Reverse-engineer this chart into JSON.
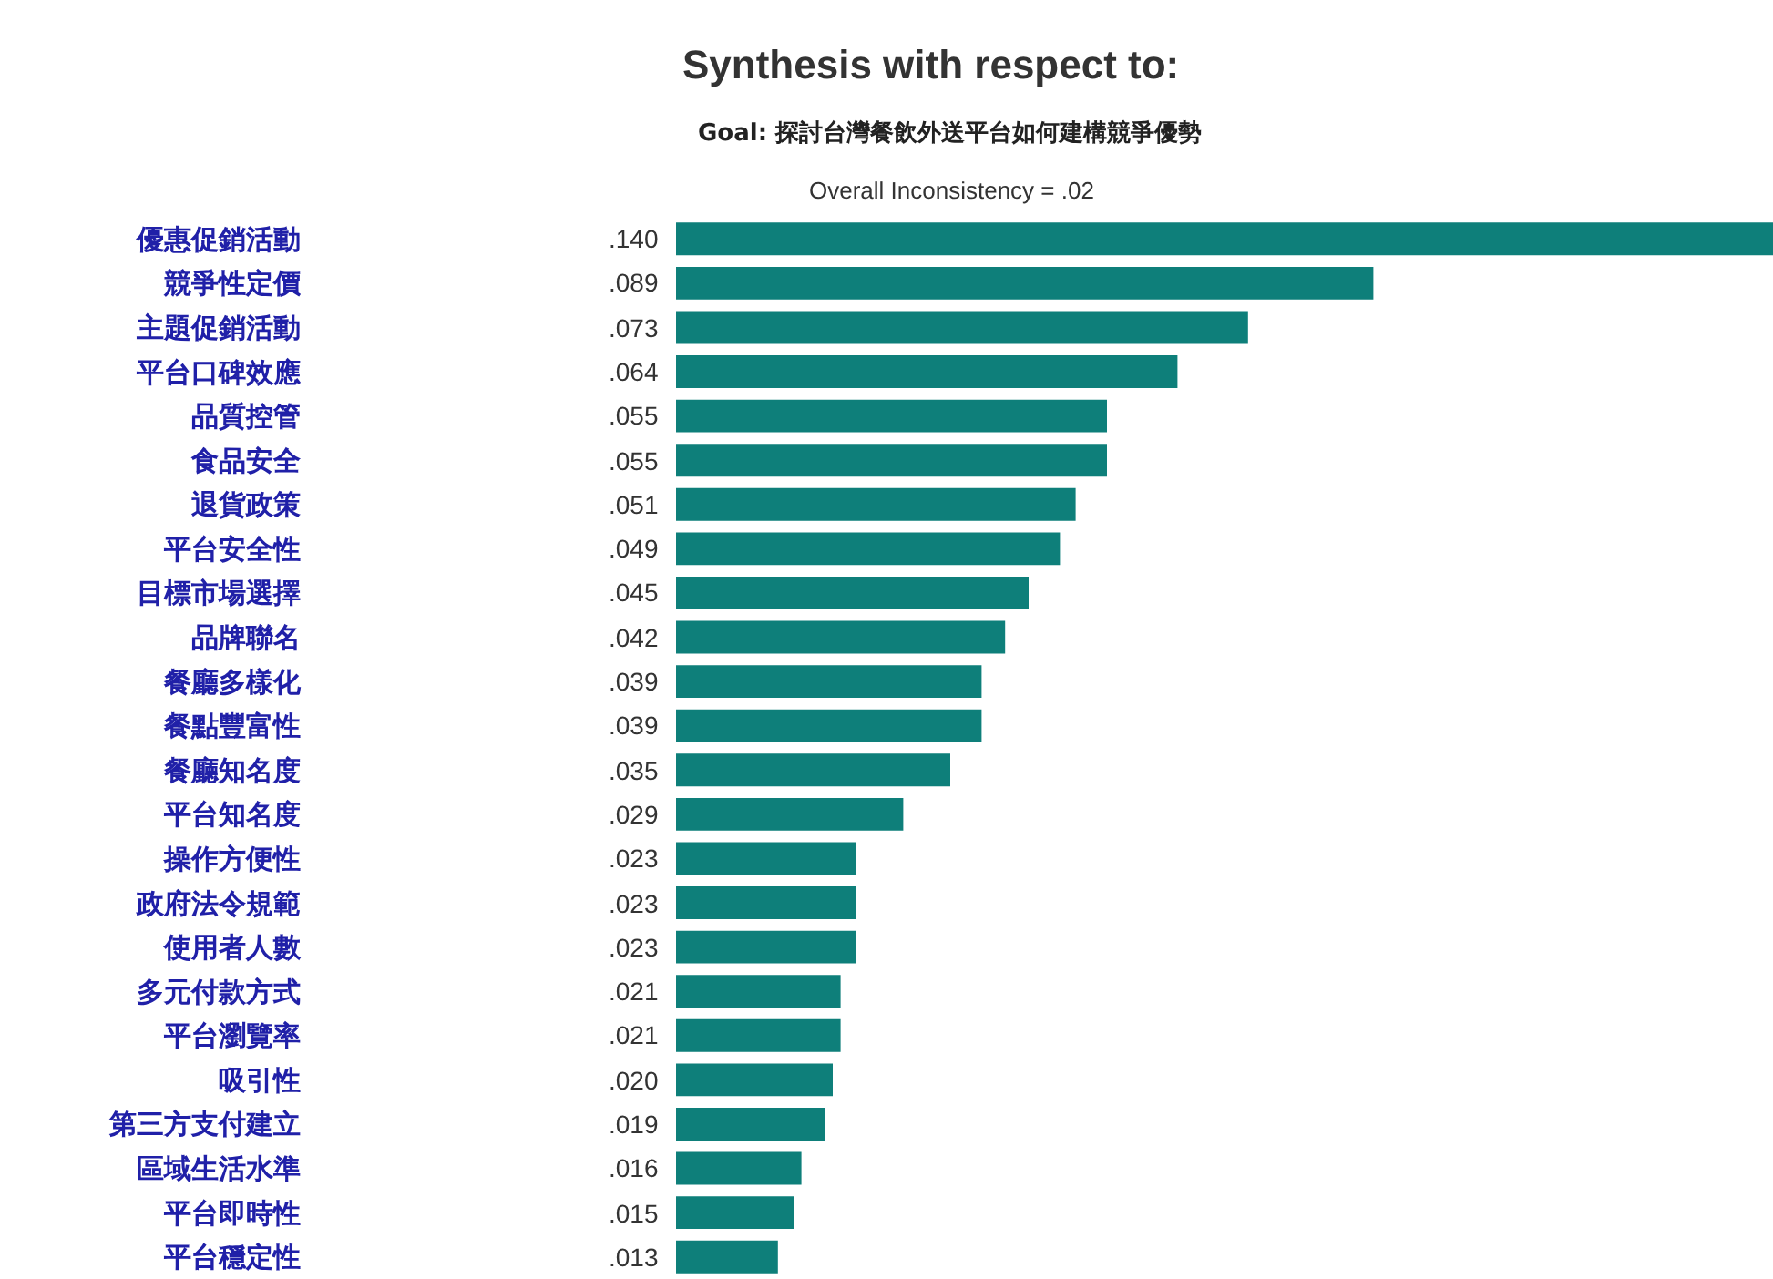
{
  "chart_data": {
    "type": "bar",
    "orientation": "horizontal",
    "title": "Synthesis with respect to:",
    "subtitle": "Goal: 探討台灣餐飲外送平台如何建構競爭優勢",
    "annotations": [
      "Overall Inconsistency = .02"
    ],
    "categories": [
      "優惠促銷活動",
      "競爭性定價",
      "主題促銷活動",
      "平台口碑效應",
      "品質控管",
      "食品安全",
      "退貨政策",
      "平台安全性",
      "目標市場選擇",
      "品牌聯名",
      "餐廳多樣化",
      "餐點豐富性",
      "餐廳知名度",
      "平台知名度",
      "操作方便性",
      "政府法令規範",
      "使用者人數",
      "多元付款方式",
      "平台瀏覽率",
      "吸引性",
      "第三方支付建立",
      "區域生活水準",
      "平台即時性",
      "平台穩定性"
    ],
    "values": [
      0.14,
      0.089,
      0.073,
      0.064,
      0.055,
      0.055,
      0.051,
      0.049,
      0.045,
      0.042,
      0.039,
      0.039,
      0.035,
      0.029,
      0.023,
      0.023,
      0.023,
      0.021,
      0.021,
      0.02,
      0.019,
      0.016,
      0.015,
      0.013
    ],
    "value_labels": [
      ".140",
      ".089",
      ".073",
      ".064",
      ".055",
      ".055",
      ".051",
      ".049",
      ".045",
      ".042",
      ".039",
      ".039",
      ".035",
      ".029",
      ".023",
      ".023",
      ".023",
      ".021",
      ".021",
      ".020",
      ".019",
      ".016",
      ".015",
      ".013"
    ],
    "color": "#0e7f7a",
    "xlim": [
      0,
      0.14
    ],
    "tick_labels": "y"
  }
}
